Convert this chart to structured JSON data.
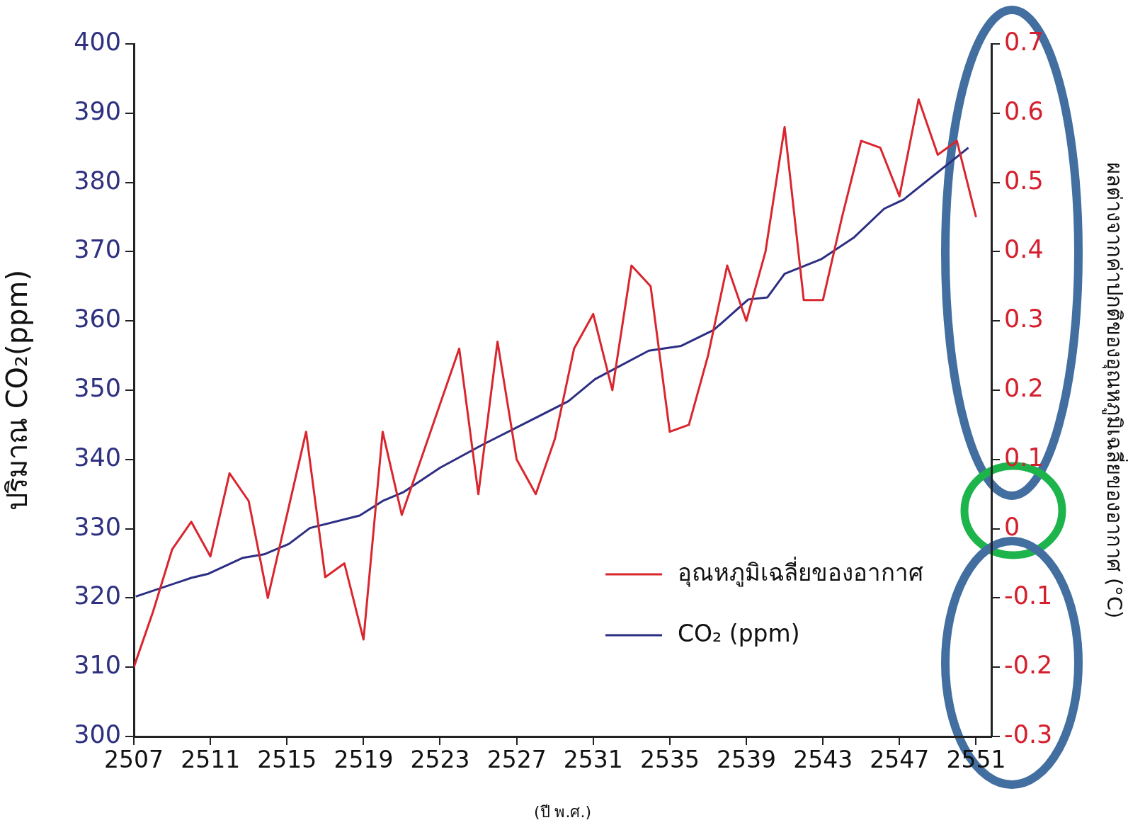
{
  "chart_data": {
    "type": "line",
    "xlabel": "(ปี พ.ศ.)",
    "ylabel": "ปริมาณ CO₂(ppm)",
    "y2label": "ผลต่างจากค่าปกติของอุณหภูมิเฉลี่ยของอากาศ (°C)",
    "xlim": [
      2507,
      2551.8
    ],
    "xticks": [
      2507,
      2511,
      2515,
      2519,
      2523,
      2527,
      2531,
      2535,
      2539,
      2543,
      2547,
      2551
    ],
    "ylim": [
      300,
      400
    ],
    "yticks": [
      300,
      310,
      320,
      330,
      340,
      350,
      360,
      370,
      380,
      390,
      400
    ],
    "y2lim": [
      -0.3,
      0.7
    ],
    "y2ticks": [
      -0.3,
      -0.2,
      -0.1,
      0,
      0.1,
      0.2,
      0.3,
      0.4,
      0.5,
      0.6,
      0.7
    ],
    "legend": "bottom right",
    "marker": "none",
    "series": [
      {
        "name": "อุณหภูมิเฉลี่ยของอากาศ",
        "color": "#d9262e",
        "axis": "y2",
        "x": [
          2507,
          2508,
          2509,
          2510,
          2511,
          2512,
          2513,
          2514,
          2515,
          2516,
          2517,
          2518,
          2519,
          2520,
          2521,
          2522,
          2523,
          2524,
          2525,
          2526,
          2527,
          2528,
          2529,
          2530,
          2531,
          2532,
          2533,
          2534,
          2535,
          2536,
          2537,
          2538,
          2539,
          2540,
          2541,
          2542,
          2543,
          2544,
          2545,
          2546,
          2547,
          2548,
          2549,
          2550,
          2551
        ],
        "values": [
          -0.2,
          -0.12,
          -0.03,
          0.01,
          -0.04,
          0.08,
          0.04,
          -0.1,
          0.02,
          0.14,
          -0.07,
          -0.05,
          -0.16,
          0.14,
          0.02,
          0.1,
          0.18,
          0.26,
          0.05,
          0.27,
          0.1,
          0.05,
          0.13,
          0.26,
          0.31,
          0.2,
          0.38,
          0.35,
          0.14,
          0.15,
          0.25,
          0.38,
          0.3,
          0.4,
          0.58,
          0.33,
          0.33,
          0.45,
          0.56,
          0.55,
          0.48,
          0.62,
          0.54,
          0.56,
          0.45
        ]
      },
      {
        "name": "CO₂ (ppm)",
        "color": "#2c2e83",
        "x": [
          2507.1,
          2510,
          2510.9,
          2512.7,
          2513.8,
          2515.1,
          2516.2,
          2518.8,
          2520,
          2521.1,
          2523,
          2525.2,
          2529.7,
          2531.1,
          2533.9,
          2535.6,
          2537.3,
          2539.1,
          2540.1,
          2541,
          2542.9,
          2544.6,
          2546.2,
          2547.2,
          2550.6
        ],
        "values": [
          320.2,
          322.9,
          323.5,
          325.8,
          326.3,
          327.8,
          330.1,
          331.9,
          334,
          335.3,
          338.8,
          342.1,
          348.4,
          351.6,
          355.7,
          356.4,
          358.7,
          363.1,
          363.4,
          366.8,
          368.9,
          372,
          376.2,
          377.5,
          385
        ]
      }
    ]
  }
}
